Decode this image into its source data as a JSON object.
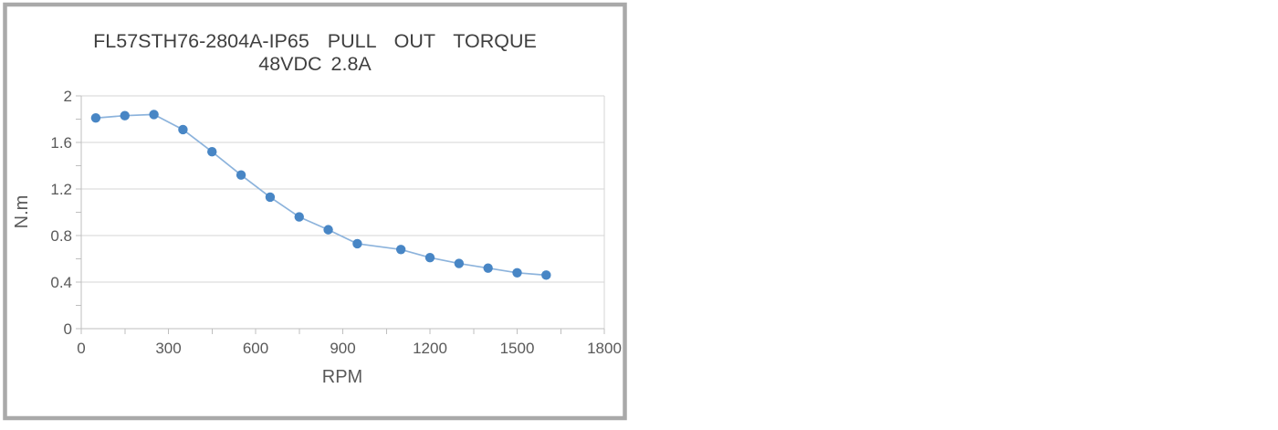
{
  "chart_data": {
    "type": "line",
    "title": "FL57STH76-2804A-IP65  PULL  OUT  TORQUE",
    "subtitle": "48VDC 2.8A",
    "xlabel": "RPM",
    "ylabel": "N.m",
    "x": [
      50,
      150,
      250,
      350,
      450,
      550,
      650,
      750,
      850,
      950,
      1100,
      1200,
      1300,
      1400,
      1500,
      1600
    ],
    "values": [
      1.81,
      1.83,
      1.84,
      1.71,
      1.52,
      1.32,
      1.13,
      0.96,
      0.85,
      0.73,
      0.68,
      0.61,
      0.56,
      0.52,
      0.48,
      0.46
    ],
    "xlim": [
      0,
      1800
    ],
    "ylim": [
      0,
      2
    ],
    "x_tick_values": [
      0,
      300,
      600,
      900,
      1200,
      1500,
      1800
    ],
    "x_tick_labels": [
      "0",
      "300",
      "600",
      "900",
      "1200",
      "1500",
      "1800"
    ],
    "x_minor_step": 150,
    "y_tick_values": [
      0,
      0.4,
      0.8,
      1.2,
      1.6,
      2
    ],
    "y_tick_labels": [
      "0",
      "0.4",
      "0.8",
      "1.2",
      "1.6",
      "2"
    ],
    "y_minor_step": 0.2,
    "grid": "horizontal-major",
    "legend_position": "none",
    "marker": "circle",
    "colors": {
      "series_line": "#8cb3dc",
      "series_marker": "#4886c5",
      "gridline": "#d6d6d6",
      "axis": "#bfbfbf",
      "tick_text": "#595959",
      "title_text": "#3f3f3f",
      "frame_border": "#a9a9a9",
      "background": "#ffffff"
    }
  }
}
